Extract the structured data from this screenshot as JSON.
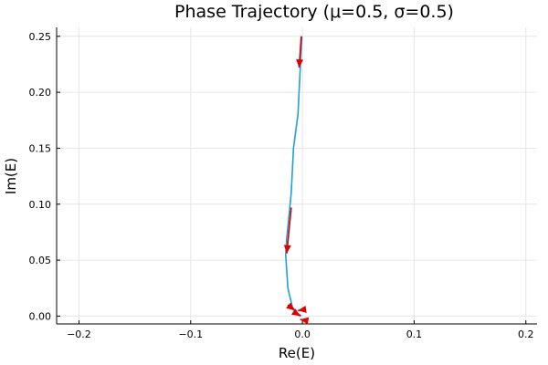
{
  "chart_data": {
    "type": "line",
    "title": "Phase Trajectory (μ=0.5, σ=0.5)",
    "xlabel": "Re(E)",
    "ylabel": "Im(E)",
    "xlim": [
      -0.22,
      0.21
    ],
    "ylim": [
      -0.007,
      0.258
    ],
    "xticks": [
      -0.2,
      -0.1,
      0.0,
      0.1,
      0.2
    ],
    "xtick_labels": [
      "−0.2",
      "−0.1",
      "0.0",
      "0.1",
      "0.2"
    ],
    "yticks": [
      0.0,
      0.05,
      0.1,
      0.15,
      0.2,
      0.25
    ],
    "ytick_labels": [
      "0.00",
      "0.05",
      "0.10",
      "0.15",
      "0.20",
      "0.25"
    ],
    "grid": true,
    "legend": "none",
    "series": [
      {
        "color": "#1f9ee0",
        "x": [
          -0.0005,
          -0.002,
          -0.004,
          -0.008,
          -0.01,
          -0.012,
          -0.014,
          -0.015,
          -0.013,
          -0.009,
          -0.005,
          -0.002,
          -0.001
        ],
        "y": [
          0.25,
          0.22,
          0.18,
          0.15,
          0.11,
          0.09,
          0.07,
          0.055,
          0.025,
          0.008,
          0.003,
          0.001,
          0.0
        ]
      }
    ],
    "arrows": {
      "color": "#e00000",
      "items": [
        {
          "from": [
            -0.001,
            0.25
          ],
          "to": [
            -0.003,
            0.222
          ]
        },
        {
          "from": [
            -0.01,
            0.097
          ],
          "to": [
            -0.014,
            0.056
          ]
        },
        {
          "from": [
            -0.013,
            0.01
          ],
          "to": [
            -0.007,
            0.005
          ]
        },
        {
          "from": [
            0.003,
            0.006
          ],
          "to": [
            -0.004,
            0.005
          ]
        },
        {
          "from": [
            -0.005,
            0.002
          ],
          "to": [
            -0.002,
            0.0
          ]
        },
        {
          "from": [
            0.004,
            -0.004
          ],
          "to": [
            -0.002,
            -0.003
          ]
        }
      ]
    }
  }
}
